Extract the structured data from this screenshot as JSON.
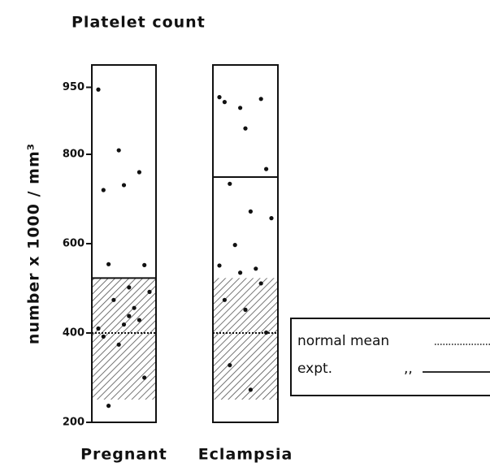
{
  "chart_data": {
    "type": "strip",
    "title": "Platelet count",
    "y_label": "number x 1000 / mm³",
    "categories": [
      "Pregnant",
      "Eclampsia"
    ],
    "values": [
      [
        945,
        809,
        760,
        720,
        731,
        552,
        554,
        438,
        492,
        474,
        456,
        410,
        374,
        429,
        392,
        419,
        300,
        237,
        502
      ],
      [
        928,
        904,
        924,
        917,
        858,
        767,
        734,
        672,
        657,
        597,
        544,
        551,
        535,
        511,
        474,
        452,
        401,
        328,
        273
      ]
    ],
    "normal_range": [
      251,
      523
    ],
    "normal_mean": 400,
    "expt_mean": [
      523,
      749
    ],
    "ylim": [
      200,
      1000
    ],
    "yticks": [
      200,
      400,
      600,
      800,
      950
    ],
    "legend": {
      "normal": "normal mean",
      "expt": "expt.",
      "ditto": ",,"
    }
  }
}
